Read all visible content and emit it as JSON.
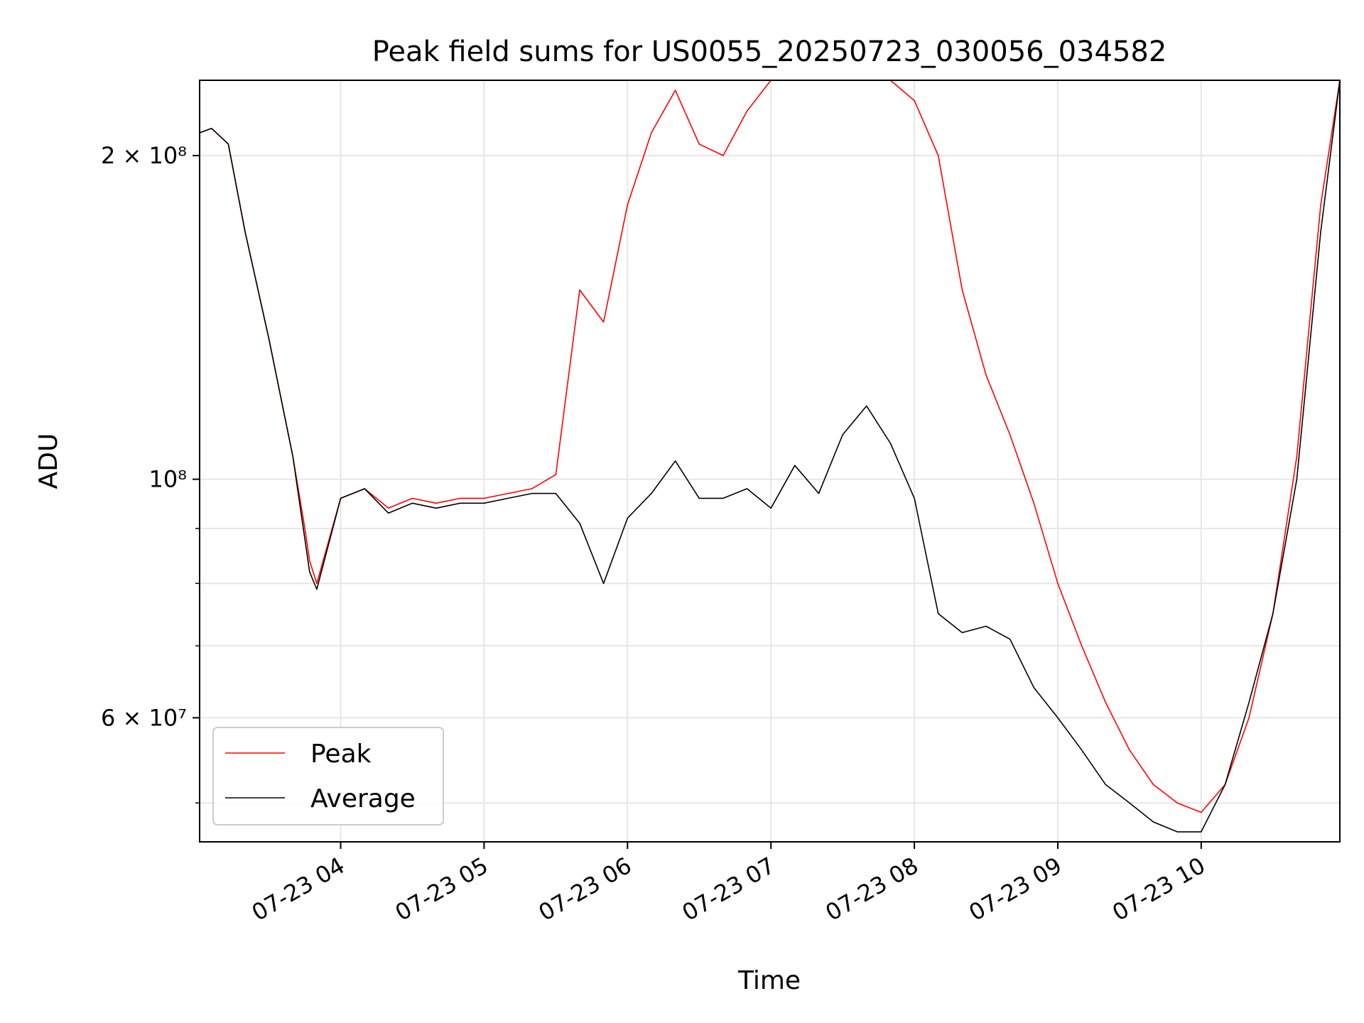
{
  "chart_data": {
    "type": "line",
    "title": "Peak field sums for US0055_20250723_030056_034582",
    "xlabel": "Time",
    "ylabel": "ADU",
    "x_unit": "hours",
    "xlim": [
      "07-23 03:01",
      "07-23 10:58"
    ],
    "ylim": [
      46000000,
      235000000
    ],
    "y_scale": "log",
    "grid": true,
    "legend_position": "lower-left",
    "x_ticks": [
      {
        "at": "07-23 04:00",
        "label": "07-23 04"
      },
      {
        "at": "07-23 05:00",
        "label": "07-23 05"
      },
      {
        "at": "07-23 06:00",
        "label": "07-23 06"
      },
      {
        "at": "07-23 07:00",
        "label": "07-23 07"
      },
      {
        "at": "07-23 08:00",
        "label": "07-23 08"
      },
      {
        "at": "07-23 09:00",
        "label": "07-23 09"
      },
      {
        "at": "07-23 10:00",
        "label": "07-23 10"
      }
    ],
    "y_ticks": [
      {
        "value": 60000000,
        "label": "6 × 10⁷"
      },
      {
        "value": 100000000,
        "label": "10⁸"
      },
      {
        "value": 200000000,
        "label": "2 × 10⁸"
      }
    ],
    "series": [
      {
        "name": "Peak",
        "color": "#ff0000",
        "x": [
          "07-23 03:01",
          "07-23 03:06",
          "07-23 03:13",
          "07-23 03:20",
          "07-23 03:30",
          "07-23 03:40",
          "07-23 03:45",
          "07-23 03:47",
          "07-23 03:50",
          "07-23 04:00",
          "07-23 04:10",
          "07-23 04:20",
          "07-23 04:30",
          "07-23 04:40",
          "07-23 04:50",
          "07-23 05:00",
          "07-23 05:10",
          "07-23 05:20",
          "07-23 05:30",
          "07-23 05:40",
          "07-23 05:50",
          "07-23 06:00",
          "07-23 06:10",
          "07-23 06:20",
          "07-23 06:30",
          "07-23 06:40",
          "07-23 06:50",
          "07-23 07:00",
          "07-23 07:10",
          "07-23 07:20",
          "07-23 07:30",
          "07-23 07:40",
          "07-23 07:50",
          "07-23 08:00",
          "07-23 08:10",
          "07-23 08:20",
          "07-23 08:30",
          "07-23 08:40",
          "07-23 08:50",
          "07-23 09:00",
          "07-23 09:10",
          "07-23 09:20",
          "07-23 09:30",
          "07-23 09:40",
          "07-23 09:50",
          "07-23 10:00",
          "07-23 10:10",
          "07-23 10:20",
          "07-23 10:30",
          "07-23 10:40",
          "07-23 10:50",
          "07-23 10:58"
        ],
        "y": [
          210000000,
          212000000,
          205000000,
          170000000,
          135000000,
          105000000,
          90000000,
          84000000,
          80000000,
          96000000,
          98000000,
          94000000,
          96000000,
          95000000,
          96000000,
          96000000,
          97000000,
          98000000,
          101000000,
          150000000,
          140000000,
          180000000,
          210000000,
          230000000,
          205000000,
          200000000,
          220000000,
          235000000,
          235000000,
          235000000,
          235000000,
          235000000,
          235000000,
          225000000,
          200000000,
          150000000,
          125000000,
          110000000,
          95000000,
          80000000,
          70000000,
          62000000,
          56000000,
          52000000,
          50000000,
          49000000,
          52000000,
          60000000,
          75000000,
          105000000,
          180000000,
          235000000
        ]
      },
      {
        "name": "Average",
        "color": "#000000",
        "x": [
          "07-23 03:01",
          "07-23 03:06",
          "07-23 03:13",
          "07-23 03:20",
          "07-23 03:30",
          "07-23 03:40",
          "07-23 03:45",
          "07-23 03:47",
          "07-23 03:50",
          "07-23 04:00",
          "07-23 04:10",
          "07-23 04:20",
          "07-23 04:30",
          "07-23 04:40",
          "07-23 04:50",
          "07-23 05:00",
          "07-23 05:10",
          "07-23 05:20",
          "07-23 05:30",
          "07-23 05:40",
          "07-23 05:50",
          "07-23 06:00",
          "07-23 06:10",
          "07-23 06:20",
          "07-23 06:30",
          "07-23 06:40",
          "07-23 06:50",
          "07-23 07:00",
          "07-23 07:10",
          "07-23 07:20",
          "07-23 07:30",
          "07-23 07:40",
          "07-23 07:50",
          "07-23 08:00",
          "07-23 08:10",
          "07-23 08:20",
          "07-23 08:30",
          "07-23 08:40",
          "07-23 08:50",
          "07-23 09:00",
          "07-23 09:10",
          "07-23 09:20",
          "07-23 09:30",
          "07-23 09:40",
          "07-23 09:50",
          "07-23 10:00",
          "07-23 10:10",
          "07-23 10:20",
          "07-23 10:30",
          "07-23 10:40",
          "07-23 10:50",
          "07-23 10:58"
        ],
        "y": [
          210000000,
          212000000,
          205000000,
          170000000,
          135000000,
          105000000,
          88000000,
          82000000,
          79000000,
          96000000,
          98000000,
          93000000,
          95000000,
          94000000,
          95000000,
          95000000,
          96000000,
          97000000,
          97000000,
          91000000,
          80000000,
          92000000,
          97000000,
          104000000,
          96000000,
          96000000,
          98000000,
          94000000,
          103000000,
          97000000,
          110000000,
          117000000,
          108000000,
          96000000,
          75000000,
          72000000,
          73000000,
          71000000,
          64000000,
          60000000,
          56000000,
          52000000,
          50000000,
          48000000,
          47000000,
          47000000,
          52000000,
          62000000,
          75000000,
          100000000,
          170000000,
          235000000
        ]
      }
    ]
  }
}
